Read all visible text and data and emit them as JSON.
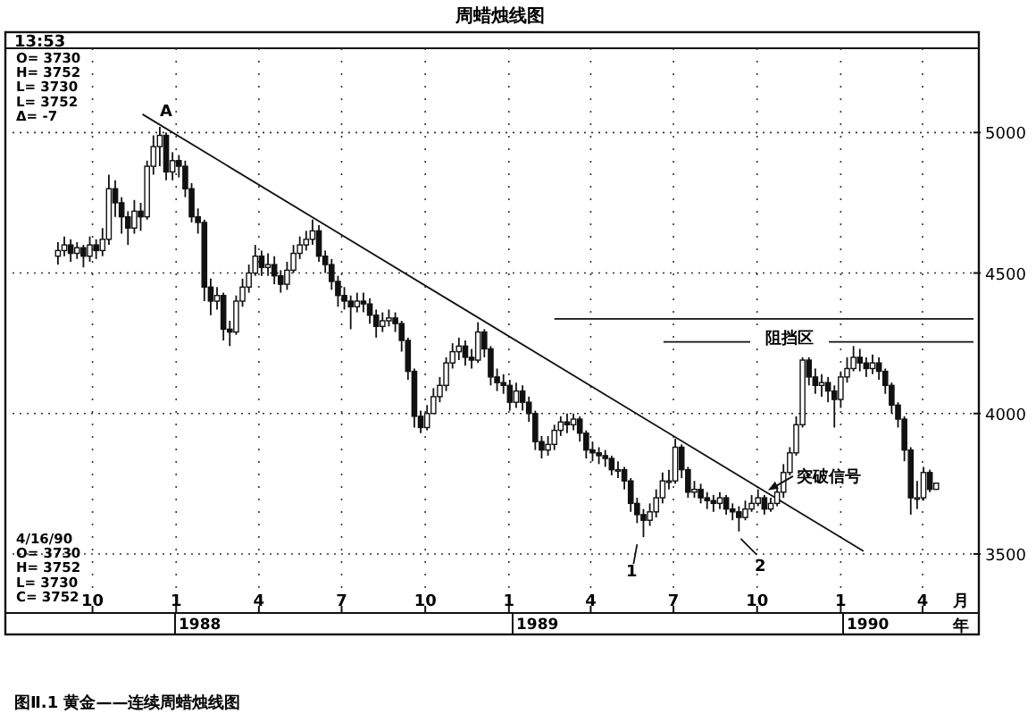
{
  "chart_data": {
    "type": "candlestick",
    "title": "周蜡烛线图",
    "xlabel": "月",
    "xlim": [
      "1987-07-05",
      "1990-05-27"
    ],
    "ylim": [
      3290,
      5300
    ],
    "xticks": [
      {
        "value": "1987-10-01",
        "label": "10"
      },
      {
        "value": "1988-01-01",
        "label": "1"
      },
      {
        "value": "1988-04-01",
        "label": "4"
      },
      {
        "value": "1988-07-01",
        "label": "7"
      },
      {
        "value": "1988-10-01",
        "label": "10"
      },
      {
        "value": "1989-01-01",
        "label": "1"
      },
      {
        "value": "1989-04-01",
        "label": "4"
      },
      {
        "value": "1989-07-01",
        "label": "7"
      },
      {
        "value": "1989-10-01",
        "label": "10"
      },
      {
        "value": "1990-01-01",
        "label": "1"
      },
      {
        "value": "1990-04-01",
        "label": "4"
      }
    ],
    "yticks": [
      3500,
      4000,
      4500,
      5000
    ],
    "grid": true,
    "series": [
      {
        "type": "candlestick",
        "color": "#111111",
        "x": [
          "1987-08-24",
          "1987-08-31",
          "1987-09-07",
          "1987-09-14",
          "1987-09-21",
          "1987-09-28",
          "1987-10-05",
          "1987-10-12",
          "1987-10-19",
          "1987-10-26",
          "1987-11-02",
          "1987-11-09",
          "1987-11-16",
          "1987-11-23",
          "1987-11-30",
          "1987-12-07",
          "1987-12-14",
          "1987-12-21",
          "1987-12-28",
          "1988-01-04",
          "1988-01-11",
          "1988-01-18",
          "1988-01-25",
          "1988-02-01",
          "1988-02-08",
          "1988-02-15",
          "1988-02-22",
          "1988-02-29",
          "1988-03-07",
          "1988-03-14",
          "1988-03-21",
          "1988-03-28",
          "1988-04-04",
          "1988-04-11",
          "1988-04-18",
          "1988-04-25",
          "1988-05-02",
          "1988-05-09",
          "1988-05-16",
          "1988-05-23",
          "1988-05-30",
          "1988-06-06",
          "1988-06-13",
          "1988-06-20",
          "1988-06-27",
          "1988-07-04",
          "1988-07-11",
          "1988-07-18",
          "1988-07-25",
          "1988-08-01",
          "1988-08-08",
          "1988-08-15",
          "1988-08-22",
          "1988-08-29",
          "1988-09-05",
          "1988-09-12",
          "1988-09-19",
          "1988-09-26",
          "1988-10-03",
          "1988-10-10",
          "1988-10-17",
          "1988-10-24",
          "1988-10-31",
          "1988-11-07",
          "1988-11-14",
          "1988-11-21",
          "1988-11-28",
          "1988-12-05",
          "1988-12-12",
          "1988-12-19",
          "1988-12-26",
          "1989-01-02",
          "1989-01-09",
          "1989-01-16",
          "1989-01-23",
          "1989-01-30",
          "1989-02-06",
          "1989-02-13",
          "1989-02-20",
          "1989-02-27",
          "1989-03-06",
          "1989-03-13",
          "1989-03-20",
          "1989-03-27",
          "1989-04-03",
          "1989-04-10",
          "1989-04-17",
          "1989-04-24",
          "1989-05-01",
          "1989-05-08",
          "1989-05-15",
          "1989-05-22",
          "1989-05-29",
          "1989-06-05",
          "1989-06-12",
          "1989-06-19",
          "1989-06-26",
          "1989-07-03",
          "1989-07-10",
          "1989-07-17",
          "1989-07-24",
          "1989-07-31",
          "1989-08-07",
          "1989-08-14",
          "1989-08-21",
          "1989-08-28",
          "1989-09-04",
          "1989-09-11",
          "1989-09-18",
          "1989-09-25",
          "1989-10-02",
          "1989-10-09",
          "1989-10-16",
          "1989-10-23",
          "1989-10-30",
          "1989-11-06",
          "1989-11-13",
          "1989-11-20",
          "1989-11-27",
          "1989-12-04",
          "1989-12-11",
          "1989-12-18",
          "1989-12-25",
          "1990-01-01",
          "1990-01-08",
          "1990-01-15",
          "1990-01-22",
          "1990-01-29",
          "1990-02-05",
          "1990-02-12",
          "1990-02-19",
          "1990-02-26",
          "1990-03-05",
          "1990-03-12",
          "1990-03-19",
          "1990-03-26",
          "1990-04-02",
          "1990-04-09",
          "1990-04-16"
        ],
        "ohlc": [
          [
            4560,
            4610,
            4530,
            4580
          ],
          [
            4580,
            4630,
            4560,
            4600
          ],
          [
            4600,
            4620,
            4540,
            4570
          ],
          [
            4570,
            4610,
            4550,
            4590
          ],
          [
            4590,
            4600,
            4520,
            4560
          ],
          [
            4560,
            4630,
            4540,
            4600
          ],
          [
            4600,
            4620,
            4550,
            4580
          ],
          [
            4580,
            4660,
            4560,
            4620
          ],
          [
            4620,
            4850,
            4600,
            4800
          ],
          [
            4800,
            4830,
            4700,
            4750
          ],
          [
            4750,
            4770,
            4640,
            4700
          ],
          [
            4700,
            4720,
            4600,
            4660
          ],
          [
            4660,
            4760,
            4640,
            4720
          ],
          [
            4720,
            4750,
            4650,
            4700
          ],
          [
            4700,
            4900,
            4690,
            4880
          ],
          [
            4880,
            4990,
            4850,
            4950
          ],
          [
            4950,
            5020,
            4880,
            4990
          ],
          [
            4990,
            5000,
            4830,
            4860
          ],
          [
            4860,
            4930,
            4830,
            4900
          ],
          [
            4900,
            4920,
            4840,
            4880
          ],
          [
            4880,
            4900,
            4770,
            4800
          ],
          [
            4800,
            4820,
            4680,
            4700
          ],
          [
            4700,
            4730,
            4640,
            4680
          ],
          [
            4680,
            4690,
            4400,
            4450
          ],
          [
            4450,
            4480,
            4350,
            4400
          ],
          [
            4400,
            4450,
            4370,
            4420
          ],
          [
            4420,
            4430,
            4260,
            4300
          ],
          [
            4300,
            4330,
            4240,
            4290
          ],
          [
            4290,
            4420,
            4280,
            4400
          ],
          [
            4400,
            4480,
            4380,
            4450
          ],
          [
            4450,
            4530,
            4430,
            4500
          ],
          [
            4500,
            4600,
            4490,
            4560
          ],
          [
            4560,
            4580,
            4490,
            4520
          ],
          [
            4520,
            4570,
            4490,
            4530
          ],
          [
            4530,
            4560,
            4460,
            4490
          ],
          [
            4490,
            4510,
            4430,
            4460
          ],
          [
            4460,
            4540,
            4440,
            4510
          ],
          [
            4510,
            4600,
            4500,
            4570
          ],
          [
            4570,
            4630,
            4550,
            4600
          ],
          [
            4600,
            4650,
            4580,
            4620
          ],
          [
            4620,
            4690,
            4600,
            4650
          ],
          [
            4650,
            4670,
            4540,
            4560
          ],
          [
            4560,
            4580,
            4500,
            4530
          ],
          [
            4530,
            4550,
            4440,
            4470
          ],
          [
            4470,
            4490,
            4380,
            4420
          ],
          [
            4420,
            4450,
            4370,
            4400
          ],
          [
            4400,
            4420,
            4300,
            4380
          ],
          [
            4380,
            4430,
            4360,
            4400
          ],
          [
            4400,
            4430,
            4360,
            4390
          ],
          [
            4390,
            4410,
            4320,
            4350
          ],
          [
            4350,
            4370,
            4270,
            4310
          ],
          [
            4310,
            4360,
            4290,
            4330
          ],
          [
            4330,
            4370,
            4310,
            4340
          ],
          [
            4340,
            4360,
            4290,
            4320
          ],
          [
            4320,
            4330,
            4220,
            4260
          ],
          [
            4260,
            4270,
            4120,
            4150
          ],
          [
            4150,
            4160,
            3950,
            3990
          ],
          [
            3990,
            4010,
            3930,
            3950
          ],
          [
            3950,
            4030,
            3940,
            4000
          ],
          [
            4000,
            4090,
            4000,
            4060
          ],
          [
            4060,
            4130,
            4040,
            4100
          ],
          [
            4100,
            4200,
            4080,
            4180
          ],
          [
            4180,
            4250,
            4160,
            4220
          ],
          [
            4220,
            4270,
            4190,
            4240
          ],
          [
            4240,
            4260,
            4170,
            4200
          ],
          [
            4200,
            4230,
            4160,
            4190
          ],
          [
            4190,
            4325,
            4180,
            4290
          ],
          [
            4290,
            4300,
            4200,
            4230
          ],
          [
            4230,
            4240,
            4100,
            4130
          ],
          [
            4130,
            4160,
            4080,
            4110
          ],
          [
            4110,
            4140,
            4070,
            4100
          ],
          [
            4100,
            4120,
            4010,
            4040
          ],
          [
            4040,
            4110,
            4020,
            4080
          ],
          [
            4080,
            4100,
            4010,
            4040
          ],
          [
            4040,
            4060,
            3970,
            4000
          ],
          [
            4000,
            4010,
            3870,
            3900
          ],
          [
            3900,
            3920,
            3840,
            3870
          ],
          [
            3870,
            3920,
            3850,
            3890
          ],
          [
            3890,
            3960,
            3870,
            3940
          ],
          [
            3940,
            3990,
            3920,
            3970
          ],
          [
            3970,
            4000,
            3930,
            3960
          ],
          [
            3960,
            4000,
            3940,
            3980
          ],
          [
            3980,
            3990,
            3900,
            3930
          ],
          [
            3930,
            3940,
            3840,
            3870
          ],
          [
            3870,
            3900,
            3830,
            3860
          ],
          [
            3860,
            3880,
            3820,
            3850
          ],
          [
            3850,
            3870,
            3810,
            3840
          ],
          [
            3840,
            3850,
            3780,
            3800
          ],
          [
            3800,
            3830,
            3770,
            3800
          ],
          [
            3800,
            3810,
            3730,
            3760
          ],
          [
            3760,
            3770,
            3650,
            3680
          ],
          [
            3680,
            3700,
            3610,
            3640
          ],
          [
            3640,
            3660,
            3560,
            3620
          ],
          [
            3620,
            3680,
            3600,
            3650
          ],
          [
            3650,
            3730,
            3630,
            3700
          ],
          [
            3700,
            3790,
            3680,
            3760
          ],
          [
            3760,
            3800,
            3730,
            3760
          ],
          [
            3760,
            3910,
            3750,
            3880
          ],
          [
            3880,
            3890,
            3770,
            3800
          ],
          [
            3800,
            3810,
            3700,
            3720
          ],
          [
            3720,
            3760,
            3700,
            3730
          ],
          [
            3730,
            3750,
            3680,
            3700
          ],
          [
            3700,
            3720,
            3660,
            3690
          ],
          [
            3690,
            3710,
            3650,
            3680
          ],
          [
            3680,
            3720,
            3660,
            3700
          ],
          [
            3700,
            3710,
            3640,
            3660
          ],
          [
            3660,
            3680,
            3620,
            3650
          ],
          [
            3650,
            3670,
            3580,
            3630
          ],
          [
            3630,
            3690,
            3620,
            3660
          ],
          [
            3660,
            3710,
            3650,
            3680
          ],
          [
            3680,
            3730,
            3670,
            3700
          ],
          [
            3700,
            3710,
            3640,
            3660
          ],
          [
            3660,
            3700,
            3650,
            3680
          ],
          [
            3680,
            3740,
            3670,
            3720
          ],
          [
            3720,
            3820,
            3700,
            3790
          ],
          [
            3790,
            3880,
            3780,
            3860
          ],
          [
            3860,
            3990,
            3850,
            3960
          ],
          [
            3960,
            4200,
            3950,
            4190
          ],
          [
            4190,
            4200,
            4100,
            4130
          ],
          [
            4130,
            4160,
            4070,
            4100
          ],
          [
            4100,
            4140,
            4060,
            4110
          ],
          [
            4110,
            4130,
            4040,
            4080
          ],
          [
            4080,
            4100,
            3950,
            4050
          ],
          [
            4050,
            4150,
            4020,
            4130
          ],
          [
            4130,
            4200,
            4110,
            4160
          ],
          [
            4160,
            4240,
            4150,
            4200
          ],
          [
            4200,
            4230,
            4150,
            4180
          ],
          [
            4180,
            4200,
            4130,
            4160
          ],
          [
            4160,
            4210,
            4140,
            4180
          ],
          [
            4180,
            4200,
            4120,
            4150
          ],
          [
            4150,
            4160,
            4070,
            4100
          ],
          [
            4100,
            4110,
            4000,
            4030
          ],
          [
            4030,
            4040,
            3950,
            3980
          ],
          [
            3980,
            3990,
            3830,
            3870
          ],
          [
            3870,
            3880,
            3640,
            3700
          ],
          [
            3700,
            3760,
            3660,
            3700
          ],
          [
            3700,
            3810,
            3690,
            3790
          ],
          [
            3790,
            3800,
            3720,
            3730
          ],
          [
            3730,
            3752,
            3730,
            3752
          ]
        ]
      },
      {
        "type": "line",
        "color": "#111111",
        "x": [
          "1987-11-25",
          "1990-01-26"
        ],
        "values": [
          5065,
          3510
        ]
      },
      {
        "type": "line",
        "color": "#111111",
        "x": [
          "1989-02-20",
          "1990-05-27"
        ],
        "values": [
          4337,
          4337
        ]
      },
      {
        "type": "line",
        "color": "#111111",
        "x": [
          "1989-06-20",
          "1990-05-27"
        ],
        "values": [
          4255,
          4255
        ]
      }
    ],
    "annotations": [
      "13:53",
      "O= 3730\nH= 3752\nL= 3730\nL= 3752\nΔ=   -7",
      "4/16/90\nO= 3730\nH= 3752\nL= 3730\nC= 3752",
      "年",
      "图Ⅱ.1  黄金——连续周蜡烛线图",
      {
        "text": "A",
        "x": "1987-12-21",
        "y": 5020
      },
      {
        "text": "1",
        "x": "1989-05-22",
        "y": 3560
      },
      {
        "text": "2",
        "x": "1989-09-11",
        "y": 3580
      },
      {
        "text": "突破信号",
        "x": "1989-10-09",
        "y": 3720
      },
      "阻挡区",
      "1988",
      "1989",
      "1990"
    ]
  }
}
